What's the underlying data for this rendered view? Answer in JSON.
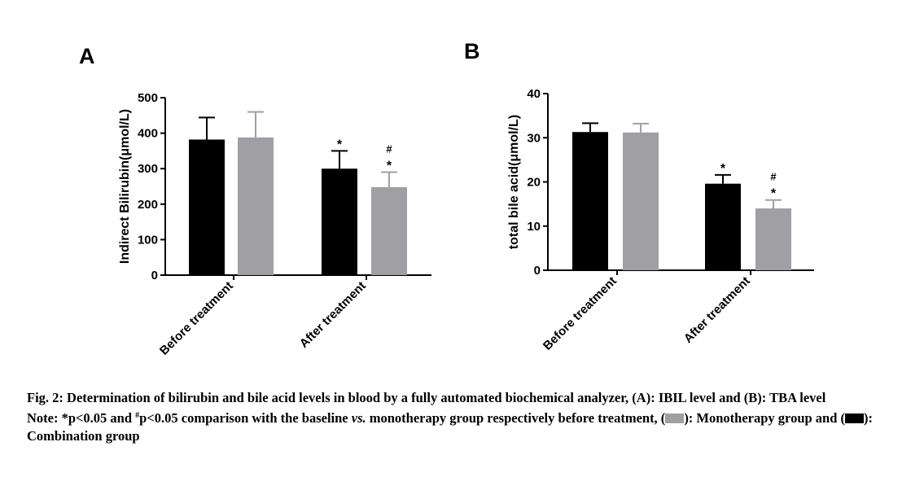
{
  "colors": {
    "combination": "#000000",
    "monotherapy": "#a0a0a4"
  },
  "chart_data": [
    {
      "type": "bar",
      "panel": "A",
      "ylabel": "Indirect Bilirubin(μmol/L)",
      "ylim": [
        0,
        500
      ],
      "yticks": [
        0,
        100,
        200,
        300,
        400,
        500
      ],
      "categories": [
        "Before treatment",
        "After treatment"
      ],
      "series": [
        {
          "key": "combination",
          "values": [
            382,
            300
          ],
          "errors": [
            62,
            50
          ],
          "marks": [
            "",
            "*"
          ]
        },
        {
          "key": "monotherapy",
          "values": [
            388,
            248
          ],
          "errors": [
            72,
            42
          ],
          "marks": [
            "",
            "#*"
          ]
        }
      ],
      "grid": false,
      "legend": "none"
    },
    {
      "type": "bar",
      "panel": "B",
      "ylabel": "total bile acid(μmol/L)",
      "ylim": [
        0,
        40
      ],
      "yticks": [
        0,
        10,
        20,
        30,
        40
      ],
      "categories": [
        "Before treatment",
        "After treatment"
      ],
      "series": [
        {
          "key": "combination",
          "values": [
            31.3,
            19.6
          ],
          "errors": [
            2.0,
            2.0
          ],
          "marks": [
            "",
            "*"
          ]
        },
        {
          "key": "monotherapy",
          "values": [
            31.2,
            14.0
          ],
          "errors": [
            2.0,
            1.9
          ],
          "marks": [
            "",
            "#*"
          ]
        }
      ],
      "grid": false,
      "legend": "none"
    }
  ],
  "caption": {
    "line1": "Fig. 2: Determination of bilirubin and bile acid levels in blood by a fully automated biochemical analyzer, (A): IBIL level and (B): TBA level",
    "note_a": "Note: *p<0.05 and ",
    "note_sup": "#",
    "note_b": "p<0.05 comparison with the baseline ",
    "note_vs": "vs.",
    "note_c": " monotherapy group respectively before treatment, (",
    "note_d": "): Monotherapy group and (",
    "note_e": "): Combination group"
  }
}
